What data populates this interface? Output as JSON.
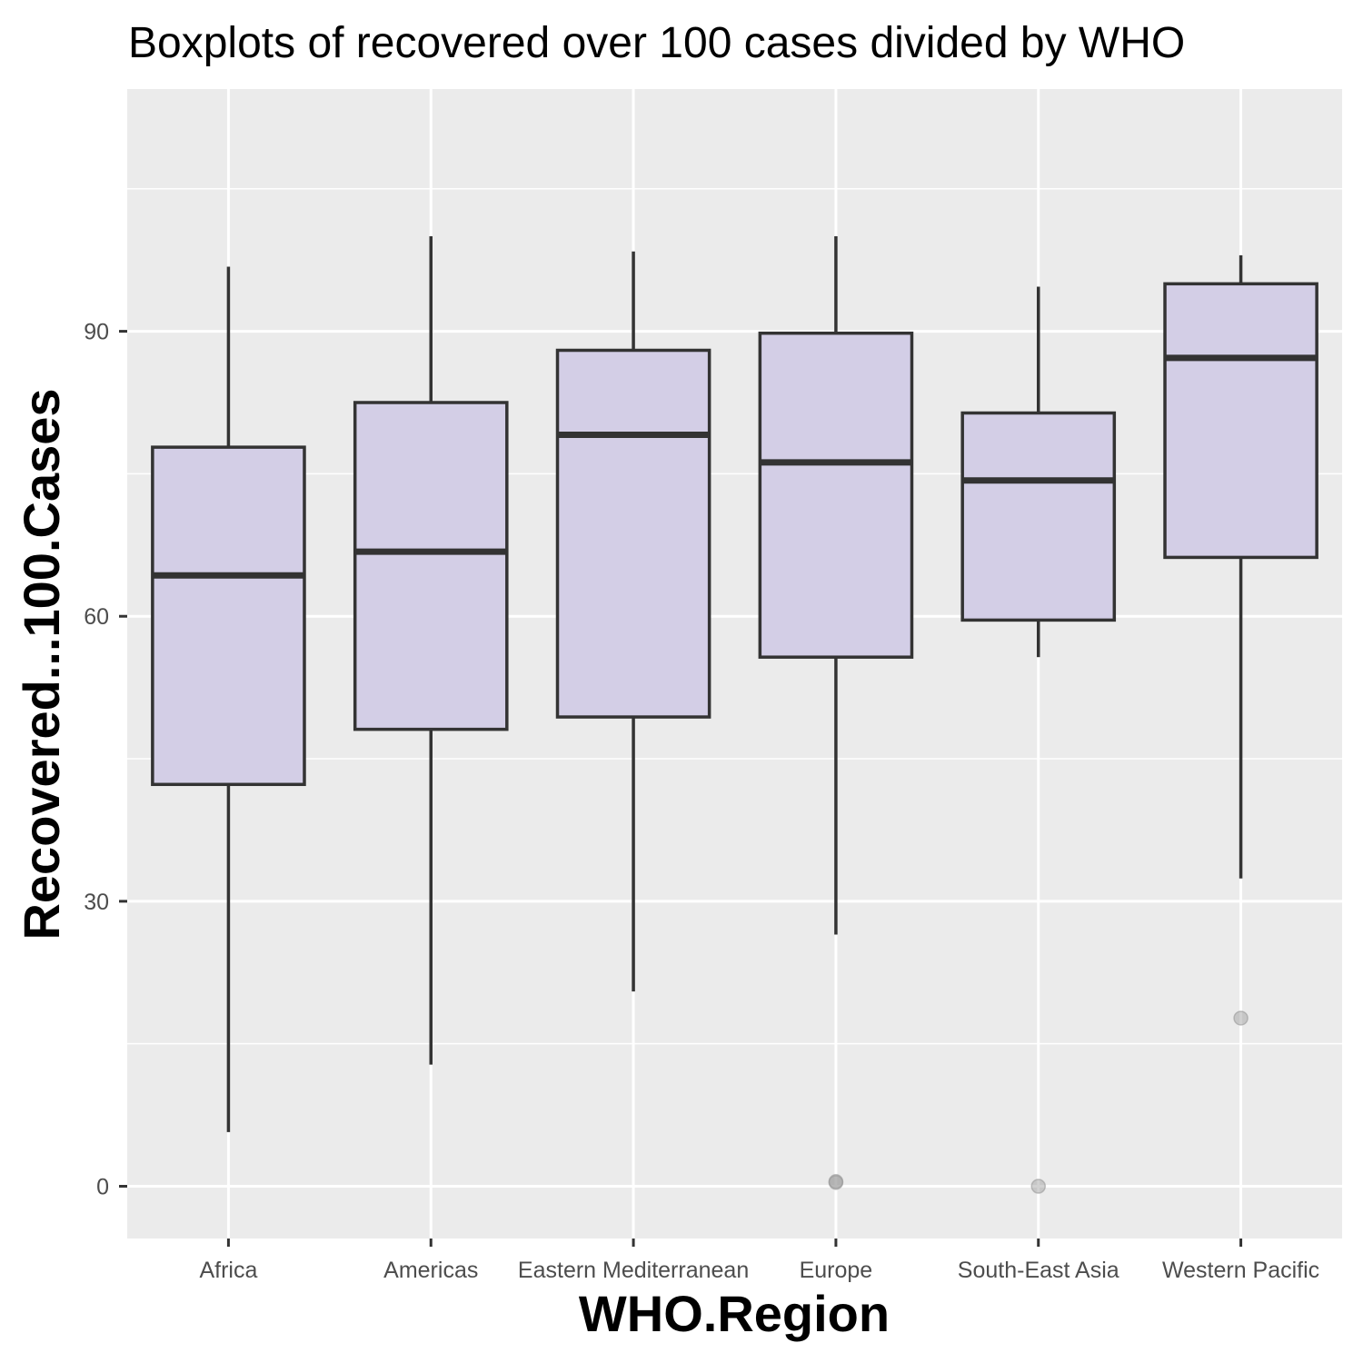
{
  "chart_data": {
    "type": "boxplot",
    "title": "Boxplots of recovered over 100 cases divided by WHO",
    "xlabel": "WHO.Region",
    "ylabel": "Recovered...100.Cases",
    "ylim": [
      -5.5,
      115.5
    ],
    "yticks": [
      0,
      30,
      60,
      90
    ],
    "grid": true,
    "categories": [
      "Africa",
      "Americas",
      "Eastern Mediterranean",
      "Europe",
      "South-East Asia",
      "Western Pacific"
    ],
    "boxes": [
      {
        "category": "Africa",
        "min": 5.7,
        "q1": 42.3,
        "median": 64.3,
        "q3": 77.8,
        "max": 96.8,
        "outliers": []
      },
      {
        "category": "Americas",
        "min": 12.8,
        "q1": 48.1,
        "median": 66.8,
        "q3": 82.5,
        "max": 100.0,
        "outliers": []
      },
      {
        "category": "Eastern Mediterranean",
        "min": 20.5,
        "q1": 49.4,
        "median": 79.1,
        "q3": 88.0,
        "max": 98.4,
        "outliers": []
      },
      {
        "category": "Europe",
        "min": 26.5,
        "q1": 55.7,
        "median": 76.2,
        "q3": 89.8,
        "max": 100.0,
        "outliers": [
          0.4,
          0.5
        ]
      },
      {
        "category": "South-East Asia",
        "min": 55.7,
        "q1": 59.6,
        "median": 74.3,
        "q3": 81.4,
        "max": 94.7,
        "outliers": [
          0.0
        ]
      },
      {
        "category": "Western Pacific",
        "min": 32.4,
        "q1": 66.2,
        "median": 87.2,
        "q3": 95.0,
        "max": 98.0,
        "outliers": [
          17.7
        ]
      }
    ],
    "colors": {
      "panel": "#ebebeb",
      "grid": "#ffffff",
      "box_fill": "#d3cee6",
      "box_line": "#333333",
      "outlier": "#999999",
      "tick_text": "#4d4d4d",
      "tick_mark": "#333333"
    }
  }
}
